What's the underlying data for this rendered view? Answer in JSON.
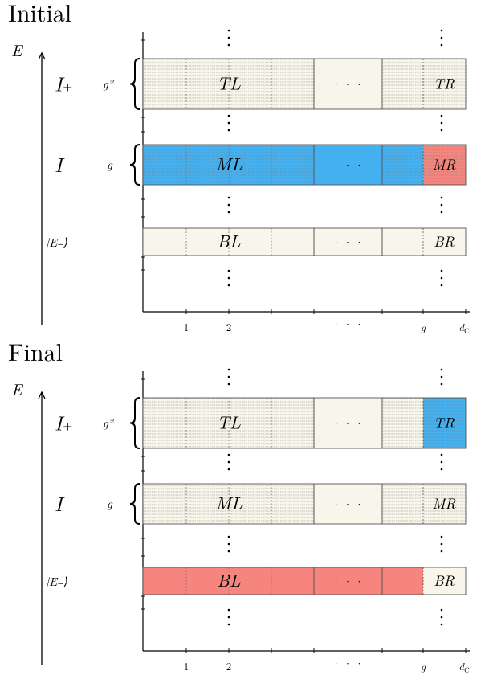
{
  "colors": {
    "empty": "#f8f6ea",
    "blue": "#45b0f0",
    "red": "#f5857e",
    "border": "#555555",
    "hatch": "#777777"
  },
  "axis": {
    "y_label": "E",
    "x_ticks": [
      "1",
      "2",
      "· · ·",
      "g",
      "d_C"
    ]
  },
  "ellipsis": "· · ·",
  "panels": [
    {
      "title": "Initial",
      "rows": [
        {
          "label": "I₊",
          "mult": "g²",
          "blocks": [
            "TL",
            "TR"
          ],
          "fills": [
            "empty",
            "empty",
            "empty",
            "empty",
            "empty",
            "empty"
          ],
          "hatched": true
        },
        {
          "label": "I",
          "mult": "g",
          "blocks": [
            "ML",
            "MR"
          ],
          "fills": [
            "blue",
            "blue",
            "blue",
            "blue",
            "blue",
            "red"
          ],
          "hatched": true
        },
        {
          "label": "|E₋⟩",
          "mult": "",
          "blocks": [
            "BL",
            "BR"
          ],
          "fills": [
            "empty",
            "empty",
            "empty",
            "empty",
            "empty",
            "empty"
          ],
          "hatched": false
        }
      ]
    },
    {
      "title": "Final",
      "rows": [
        {
          "label": "I₊",
          "mult": "g²",
          "blocks": [
            "TL",
            "TR"
          ],
          "fills": [
            "empty",
            "empty",
            "empty",
            "empty",
            "empty",
            "blue"
          ],
          "hatched": true
        },
        {
          "label": "I",
          "mult": "g",
          "blocks": [
            "ML",
            "MR"
          ],
          "fills": [
            "empty",
            "empty",
            "empty",
            "empty",
            "empty",
            "empty"
          ],
          "hatched": true
        },
        {
          "label": "|E₋⟩",
          "mult": "",
          "blocks": [
            "BL",
            "BR"
          ],
          "fills": [
            "red",
            "red",
            "red",
            "red",
            "red",
            "empty"
          ],
          "hatched": false
        }
      ]
    }
  ]
}
